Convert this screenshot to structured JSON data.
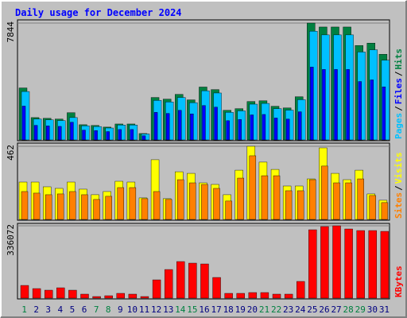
{
  "title": "Daily usage for December 2024",
  "legend_separator": "/",
  "chart_data": [
    {
      "type": "bar",
      "ylim": [
        0,
        7844
      ],
      "yticks": [
        7844
      ],
      "series": [
        {
          "name": "Pages",
          "color": "#00c0ff",
          "values": [
            3250,
            1400,
            1350,
            1300,
            1500,
            950,
            900,
            800,
            1000,
            1000,
            400,
            2650,
            2550,
            2850,
            2500,
            3300,
            3150,
            1850,
            1950,
            2400,
            2450,
            2100,
            2000,
            2700,
            7300,
            7050,
            7050,
            7050,
            5900,
            6050,
            5350
          ]
        },
        {
          "name": "Files",
          "color": "#0000ff",
          "values": [
            2270,
            980,
            940,
            910,
            1190,
            660,
            630,
            560,
            700,
            700,
            280,
            1850,
            1780,
            1990,
            1750,
            2310,
            2200,
            1290,
            1370,
            1680,
            1710,
            1470,
            1400,
            1890,
            4890,
            4730,
            4730,
            4730,
            3920,
            4030,
            3560
          ]
        },
        {
          "name": "Hits",
          "color": "#008040",
          "values": [
            3490,
            1500,
            1450,
            1400,
            1830,
            1020,
            970,
            860,
            1070,
            1070,
            430,
            2850,
            2740,
            3060,
            2690,
            3550,
            3380,
            1990,
            2100,
            2580,
            2630,
            2260,
            2150,
            2900,
            7844,
            7580,
            7580,
            7580,
            6340,
            6500,
            5750
          ]
        }
      ]
    },
    {
      "type": "bar",
      "ylim": [
        0,
        462
      ],
      "yticks": [
        462
      ],
      "series": [
        {
          "name": "Sites",
          "color": "#ff8000",
          "values": [
            176,
            166,
            156,
            161,
            176,
            156,
            126,
            146,
            201,
            201,
            131,
            176,
            126,
            251,
            231,
            221,
            196,
            116,
            261,
            402,
            276,
            276,
            181,
            181,
            251,
            337,
            231,
            231,
            256,
            151,
            106
          ]
        },
        {
          "name": "Visits",
          "color": "#ffff00",
          "values": [
            236,
            236,
            206,
            196,
            236,
            191,
            156,
            176,
            241,
            236,
            136,
            377,
            131,
            301,
            291,
            231,
            221,
            156,
            311,
            462,
            362,
            316,
            211,
            211,
            256,
            452,
            291,
            251,
            311,
            161,
            121
          ]
        }
      ]
    },
    {
      "type": "bar",
      "ylim": [
        0,
        336072
      ],
      "yticks": [
        336072
      ],
      "categories": [
        "1",
        "2",
        "3",
        "4",
        "5",
        "6",
        "7",
        "8",
        "9",
        "10",
        "11",
        "12",
        "13",
        "14",
        "15",
        "16",
        "17",
        "18",
        "19",
        "20",
        "21",
        "22",
        "23",
        "24",
        "25",
        "26",
        "27",
        "28",
        "29",
        "30",
        "31"
      ],
      "category_colors": [
        "#008040",
        "#000080",
        "#000080",
        "#000080",
        "#000080",
        "#000080",
        "#008040",
        "#008040",
        "#000080",
        "#000080",
        "#000080",
        "#000080",
        "#000080",
        "#008040",
        "#008040",
        "#000080",
        "#000080",
        "#000080",
        "#000080",
        "#000080",
        "#008040",
        "#008040",
        "#000080",
        "#000080",
        "#000080",
        "#000080",
        "#000080",
        "#008040",
        "#008040",
        "#000080",
        "#000080"
      ],
      "series": [
        {
          "name": "KBytes",
          "color": "#ff0000",
          "values": [
            59000,
            44300,
            36900,
            48000,
            36900,
            18500,
            7400,
            11100,
            22200,
            18500,
            7400,
            84900,
            132900,
            169900,
            162500,
            158800,
            96000,
            22200,
            22200,
            25900,
            25900,
            18500,
            18500,
            77600,
            317600,
            332400,
            336072,
            321300,
            313900,
            313900,
            310200
          ]
        }
      ]
    }
  ]
}
